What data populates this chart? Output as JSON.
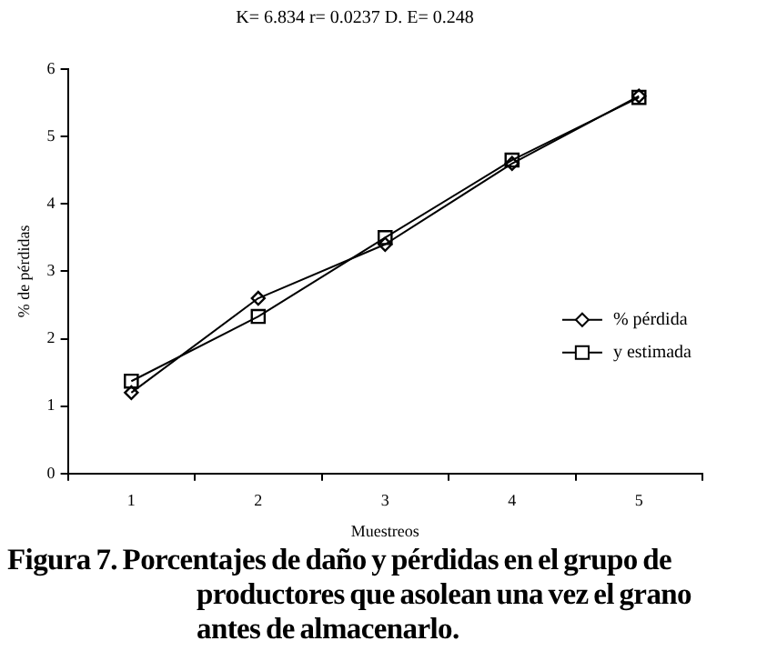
{
  "chart_data": {
    "type": "line",
    "title": "K= 6.834 r= 0.0237 D. E= 0.248",
    "xlabel": "Muestreos",
    "ylabel": "% de pérdidas",
    "annotations": [
      "Figura 7. Porcentajes de daño y pérdidas en el grupo de productores que asolean una vez el grano antes de almacenarlo."
    ],
    "categories": [
      "1",
      "2",
      "3",
      "4",
      "5"
    ],
    "series": [
      {
        "name": "% pérdida",
        "color": "#000000",
        "marker": "diamond",
        "values": [
          1.2,
          2.6,
          3.4,
          4.6,
          5.6
        ]
      },
      {
        "name": "y estimada",
        "color": "#000000",
        "marker": "square",
        "values": [
          1.37,
          2.33,
          3.5,
          4.65,
          5.58
        ]
      }
    ],
    "ylim": [
      0,
      6
    ],
    "yticks": [
      0,
      1,
      2,
      3,
      4,
      5,
      6
    ],
    "grid": false,
    "legend": "right",
    "line_style": "solid"
  }
}
